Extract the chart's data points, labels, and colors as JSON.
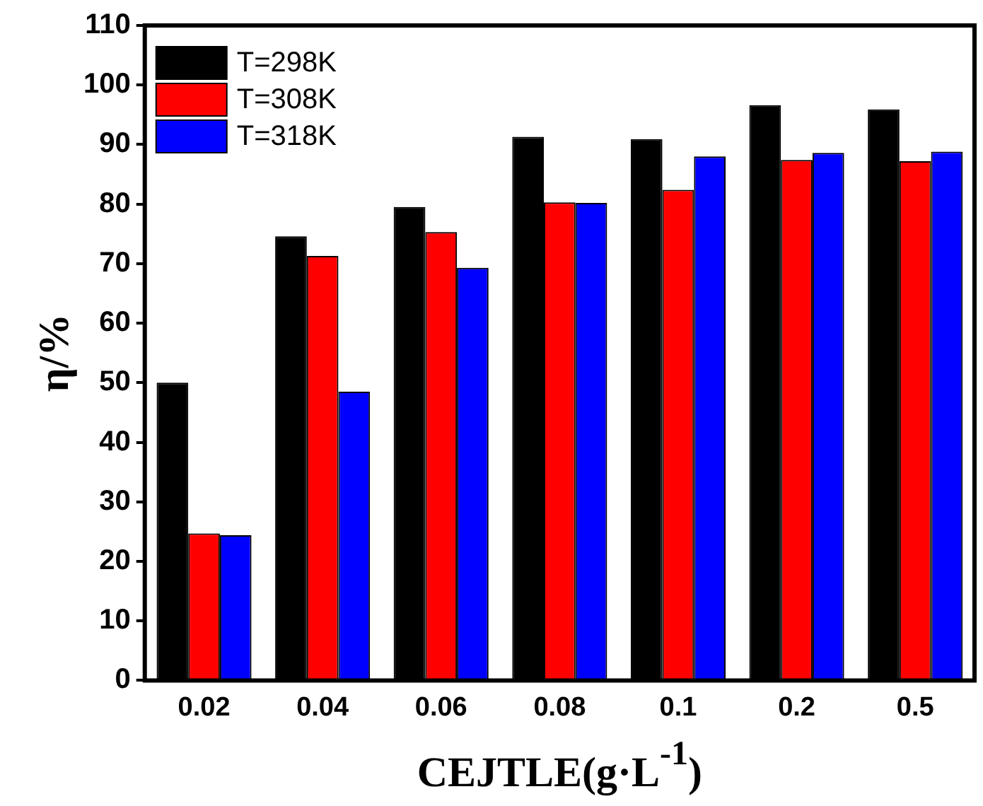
{
  "chart_data": {
    "type": "bar",
    "xlabel": "CEJTLE(g·L$^{-1}$)",
    "ylabel": "η/%",
    "categories": [
      "0.02",
      "0.04",
      "0.06",
      "0.08",
      "0.1",
      "0.2",
      "0.5"
    ],
    "series": [
      {
        "name": "T=298K",
        "color": "#000000",
        "values": [
          50,
          74.6,
          79.5,
          91.3,
          90.9,
          96.6,
          95.9
        ]
      },
      {
        "name": "T=308K",
        "color": "#ff0000",
        "values": [
          24.7,
          71.3,
          75.3,
          80.3,
          82.4,
          87.4,
          87.2
        ]
      },
      {
        "name": "T=318K",
        "color": "#0000ff",
        "values": [
          24.4,
          48.5,
          69.3,
          80.2,
          88,
          88.6,
          88.8
        ]
      }
    ],
    "ylim": [
      0,
      110
    ],
    "yticks": [
      0,
      10,
      20,
      30,
      40,
      50,
      60,
      70,
      80,
      90,
      100,
      110
    ],
    "grid": false,
    "legend": "top left"
  }
}
